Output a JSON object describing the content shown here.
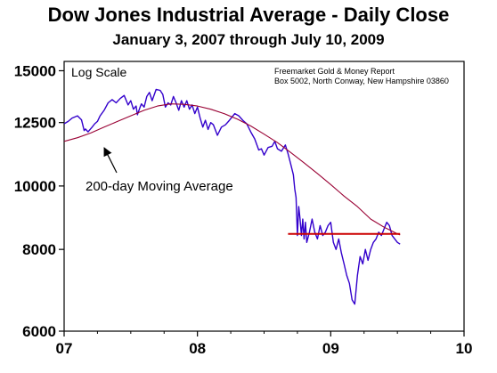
{
  "chart_data": {
    "type": "line",
    "title": "Dow Jones Industrial Average - Daily Close",
    "subtitle": "January 3, 2007 through July 10, 2009",
    "y_scale": "log",
    "ylim": [
      6000,
      15500
    ],
    "xlim": [
      2007.0,
      2010.0
    ],
    "y_ticks": [
      {
        "value": 6000,
        "label": "6000"
      },
      {
        "value": 8000,
        "label": "8000"
      },
      {
        "value": 10000,
        "label": "10000"
      },
      {
        "value": 12500,
        "label": "12500"
      },
      {
        "value": 15000,
        "label": "15000"
      }
    ],
    "x_ticks": [
      {
        "value": 2007.0,
        "label": "07"
      },
      {
        "value": 2008.0,
        "label": "08"
      },
      {
        "value": 2009.0,
        "label": "09"
      },
      {
        "value": 2010.0,
        "label": "10"
      }
    ],
    "grid": false,
    "scale_label": "Log Scale",
    "source_lines": [
      "Freemarket Gold & Money Report",
      "Box 5002, North Conway, New Hampshire 03860"
    ],
    "annotation": "200-day Moving Average",
    "series": [
      {
        "role": "daily-close",
        "color": "#3300cc",
        "x": [
          2007.0,
          2007.03,
          2007.06,
          2007.1,
          2007.13,
          2007.15,
          2007.16,
          2007.18,
          2007.21,
          2007.23,
          2007.25,
          2007.27,
          2007.3,
          2007.33,
          2007.36,
          2007.39,
          2007.42,
          2007.45,
          2007.48,
          2007.5,
          2007.52,
          2007.54,
          2007.55,
          2007.57,
          2007.58,
          2007.6,
          2007.62,
          2007.64,
          2007.66,
          2007.69,
          2007.72,
          2007.74,
          2007.76,
          2007.78,
          2007.8,
          2007.82,
          2007.84,
          2007.86,
          2007.88,
          2007.9,
          2007.92,
          2007.94,
          2007.96,
          2007.98,
          2008.0,
          2008.02,
          2008.04,
          2008.06,
          2008.08,
          2008.1,
          2008.12,
          2008.15,
          2008.18,
          2008.21,
          2008.24,
          2008.28,
          2008.31,
          2008.34,
          2008.37,
          2008.4,
          2008.43,
          2008.46,
          2008.48,
          2008.5,
          2008.53,
          2008.56,
          2008.58,
          2008.6,
          2008.63,
          2008.66,
          2008.68,
          2008.7,
          2008.72,
          2008.73,
          2008.74,
          2008.75,
          2008.76,
          2008.77,
          2008.78,
          2008.79,
          2008.8,
          2008.81,
          2008.82,
          2008.84,
          2008.86,
          2008.88,
          2008.9,
          2008.92,
          2008.94,
          2008.96,
          2008.98,
          2009.0,
          2009.02,
          2009.04,
          2009.06,
          2009.08,
          2009.1,
          2009.12,
          2009.14,
          2009.16,
          2009.18,
          2009.2,
          2009.22,
          2009.24,
          2009.26,
          2009.28,
          2009.3,
          2009.32,
          2009.34,
          2009.36,
          2009.38,
          2009.4,
          2009.42,
          2009.44,
          2009.46,
          2009.48,
          2009.5,
          2009.52
        ],
        "y": [
          12450,
          12550,
          12700,
          12800,
          12620,
          12150,
          12220,
          12100,
          12300,
          12450,
          12550,
          12800,
          13050,
          13400,
          13550,
          13400,
          13600,
          13750,
          13300,
          13500,
          13100,
          13250,
          12850,
          13200,
          13350,
          13200,
          13700,
          13900,
          13500,
          14050,
          14000,
          13800,
          13200,
          13400,
          13300,
          13700,
          13400,
          13050,
          13500,
          13200,
          13500,
          13100,
          13300,
          12900,
          13200,
          12700,
          12300,
          12600,
          12200,
          12500,
          12400,
          11950,
          12300,
          12400,
          12600,
          12900,
          12800,
          12600,
          12450,
          12100,
          11800,
          11350,
          11400,
          11150,
          11450,
          11500,
          11700,
          11400,
          11300,
          11550,
          11200,
          10800,
          10400,
          9900,
          9600,
          8400,
          9300,
          8900,
          8400,
          8900,
          8300,
          8800,
          8200,
          8500,
          8900,
          8500,
          8300,
          8700,
          8400,
          8500,
          8700,
          8800,
          8200,
          8000,
          8300,
          7900,
          7600,
          7300,
          7100,
          6700,
          6600,
          7300,
          7800,
          7600,
          8000,
          7700,
          8000,
          8200,
          8300,
          8500,
          8400,
          8600,
          8800,
          8700,
          8400,
          8300,
          8200,
          8150
        ]
      },
      {
        "role": "moving-average",
        "name": "200-day Moving Average",
        "color": "#990033",
        "x": [
          2007.0,
          2007.1,
          2007.2,
          2007.3,
          2007.4,
          2007.5,
          2007.6,
          2007.7,
          2007.8,
          2007.9,
          2008.0,
          2008.1,
          2008.2,
          2008.3,
          2008.4,
          2008.5,
          2008.6,
          2008.7,
          2008.8,
          2008.9,
          2009.0,
          2009.1,
          2009.2,
          2009.3,
          2009.4,
          2009.45,
          2009.5,
          2009.52
        ],
        "y": [
          11700,
          11850,
          12050,
          12300,
          12550,
          12800,
          13050,
          13250,
          13350,
          13330,
          13250,
          13100,
          12900,
          12650,
          12350,
          12000,
          11650,
          11250,
          10850,
          10450,
          10050,
          9650,
          9300,
          8900,
          8650,
          8550,
          8450,
          8420
        ]
      },
      {
        "role": "horizontal-level",
        "color": "#cc0000",
        "x": [
          2008.68,
          2009.52
        ],
        "y": [
          8450,
          8450
        ]
      }
    ]
  }
}
